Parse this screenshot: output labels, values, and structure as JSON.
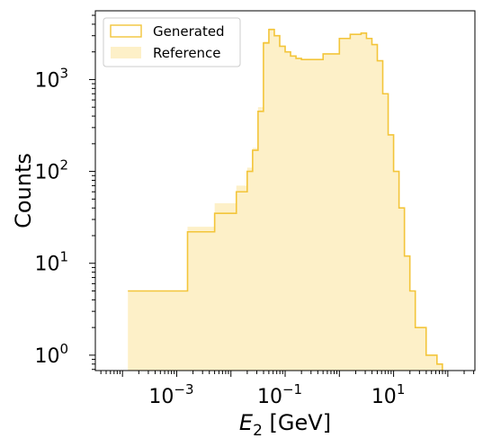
{
  "chart_data": {
    "type": "histogram",
    "xlabel": "E_2 [GeV]",
    "ylabel": "Counts",
    "x_scale": "log",
    "y_scale": "log",
    "xlim": [
      3.16e-05,
      316
    ],
    "ylim": [
      0.68,
      5600
    ],
    "x_ticks": [
      {
        "value": 0.001,
        "base": "10",
        "exp": "−3"
      },
      {
        "value": 0.1,
        "base": "10",
        "exp": "−1"
      },
      {
        "value": 10,
        "base": "10",
        "exp": "1"
      }
    ],
    "y_ticks": [
      {
        "value": 1,
        "base": "10",
        "exp": "0"
      },
      {
        "value": 10,
        "base": "10",
        "exp": "1"
      },
      {
        "value": 100,
        "base": "10",
        "exp": "2"
      },
      {
        "value": 1000,
        "base": "10",
        "exp": "3"
      }
    ],
    "grid": false,
    "legend_position": "top-left",
    "colors": {
      "generated": "#f3c53a",
      "reference": "#fdf0c8"
    },
    "series": [
      {
        "name": "Generated",
        "style": "step",
        "log10_x": [
          -3.9,
          -2.8,
          -2.3,
          -1.9,
          -1.7,
          -1.6,
          -1.5,
          -1.4,
          -1.3,
          -1.2,
          -1.1,
          -1.0,
          -0.9,
          -0.8,
          -0.7,
          -0.5,
          -0.3,
          0.0,
          0.2,
          0.4,
          0.5,
          0.6,
          0.7,
          0.8,
          0.9,
          1.0,
          1.1,
          1.2,
          1.3,
          1.4,
          1.6,
          1.8
        ],
        "values": [
          5,
          22,
          35,
          60,
          100,
          170,
          450,
          2500,
          3500,
          3000,
          2300,
          2000,
          1800,
          1700,
          1650,
          1650,
          1900,
          2800,
          3100,
          3200,
          2800,
          2400,
          1600,
          700,
          250,
          100,
          40,
          12,
          5,
          2,
          1,
          0.8
        ]
      },
      {
        "name": "Reference",
        "style": "filled",
        "log10_x": [
          -3.9,
          -2.8,
          -2.3,
          -1.9,
          -1.7,
          -1.6,
          -1.5,
          -1.4,
          -1.3,
          -1.2,
          -1.1,
          -1.0,
          -0.9,
          -0.8,
          -0.7,
          -0.5,
          -0.3,
          0.0,
          0.2,
          0.4,
          0.5,
          0.6,
          0.7,
          0.8,
          0.9,
          1.0,
          1.1,
          1.2,
          1.3,
          1.4,
          1.6,
          1.8
        ],
        "values": [
          5,
          25,
          45,
          70,
          110,
          180,
          500,
          2600,
          3600,
          3000,
          2300,
          2000,
          1800,
          1700,
          1650,
          1650,
          1900,
          2800,
          3100,
          3200,
          2800,
          2400,
          1600,
          700,
          250,
          100,
          40,
          12,
          5,
          2,
          1,
          0.8
        ]
      }
    ]
  }
}
